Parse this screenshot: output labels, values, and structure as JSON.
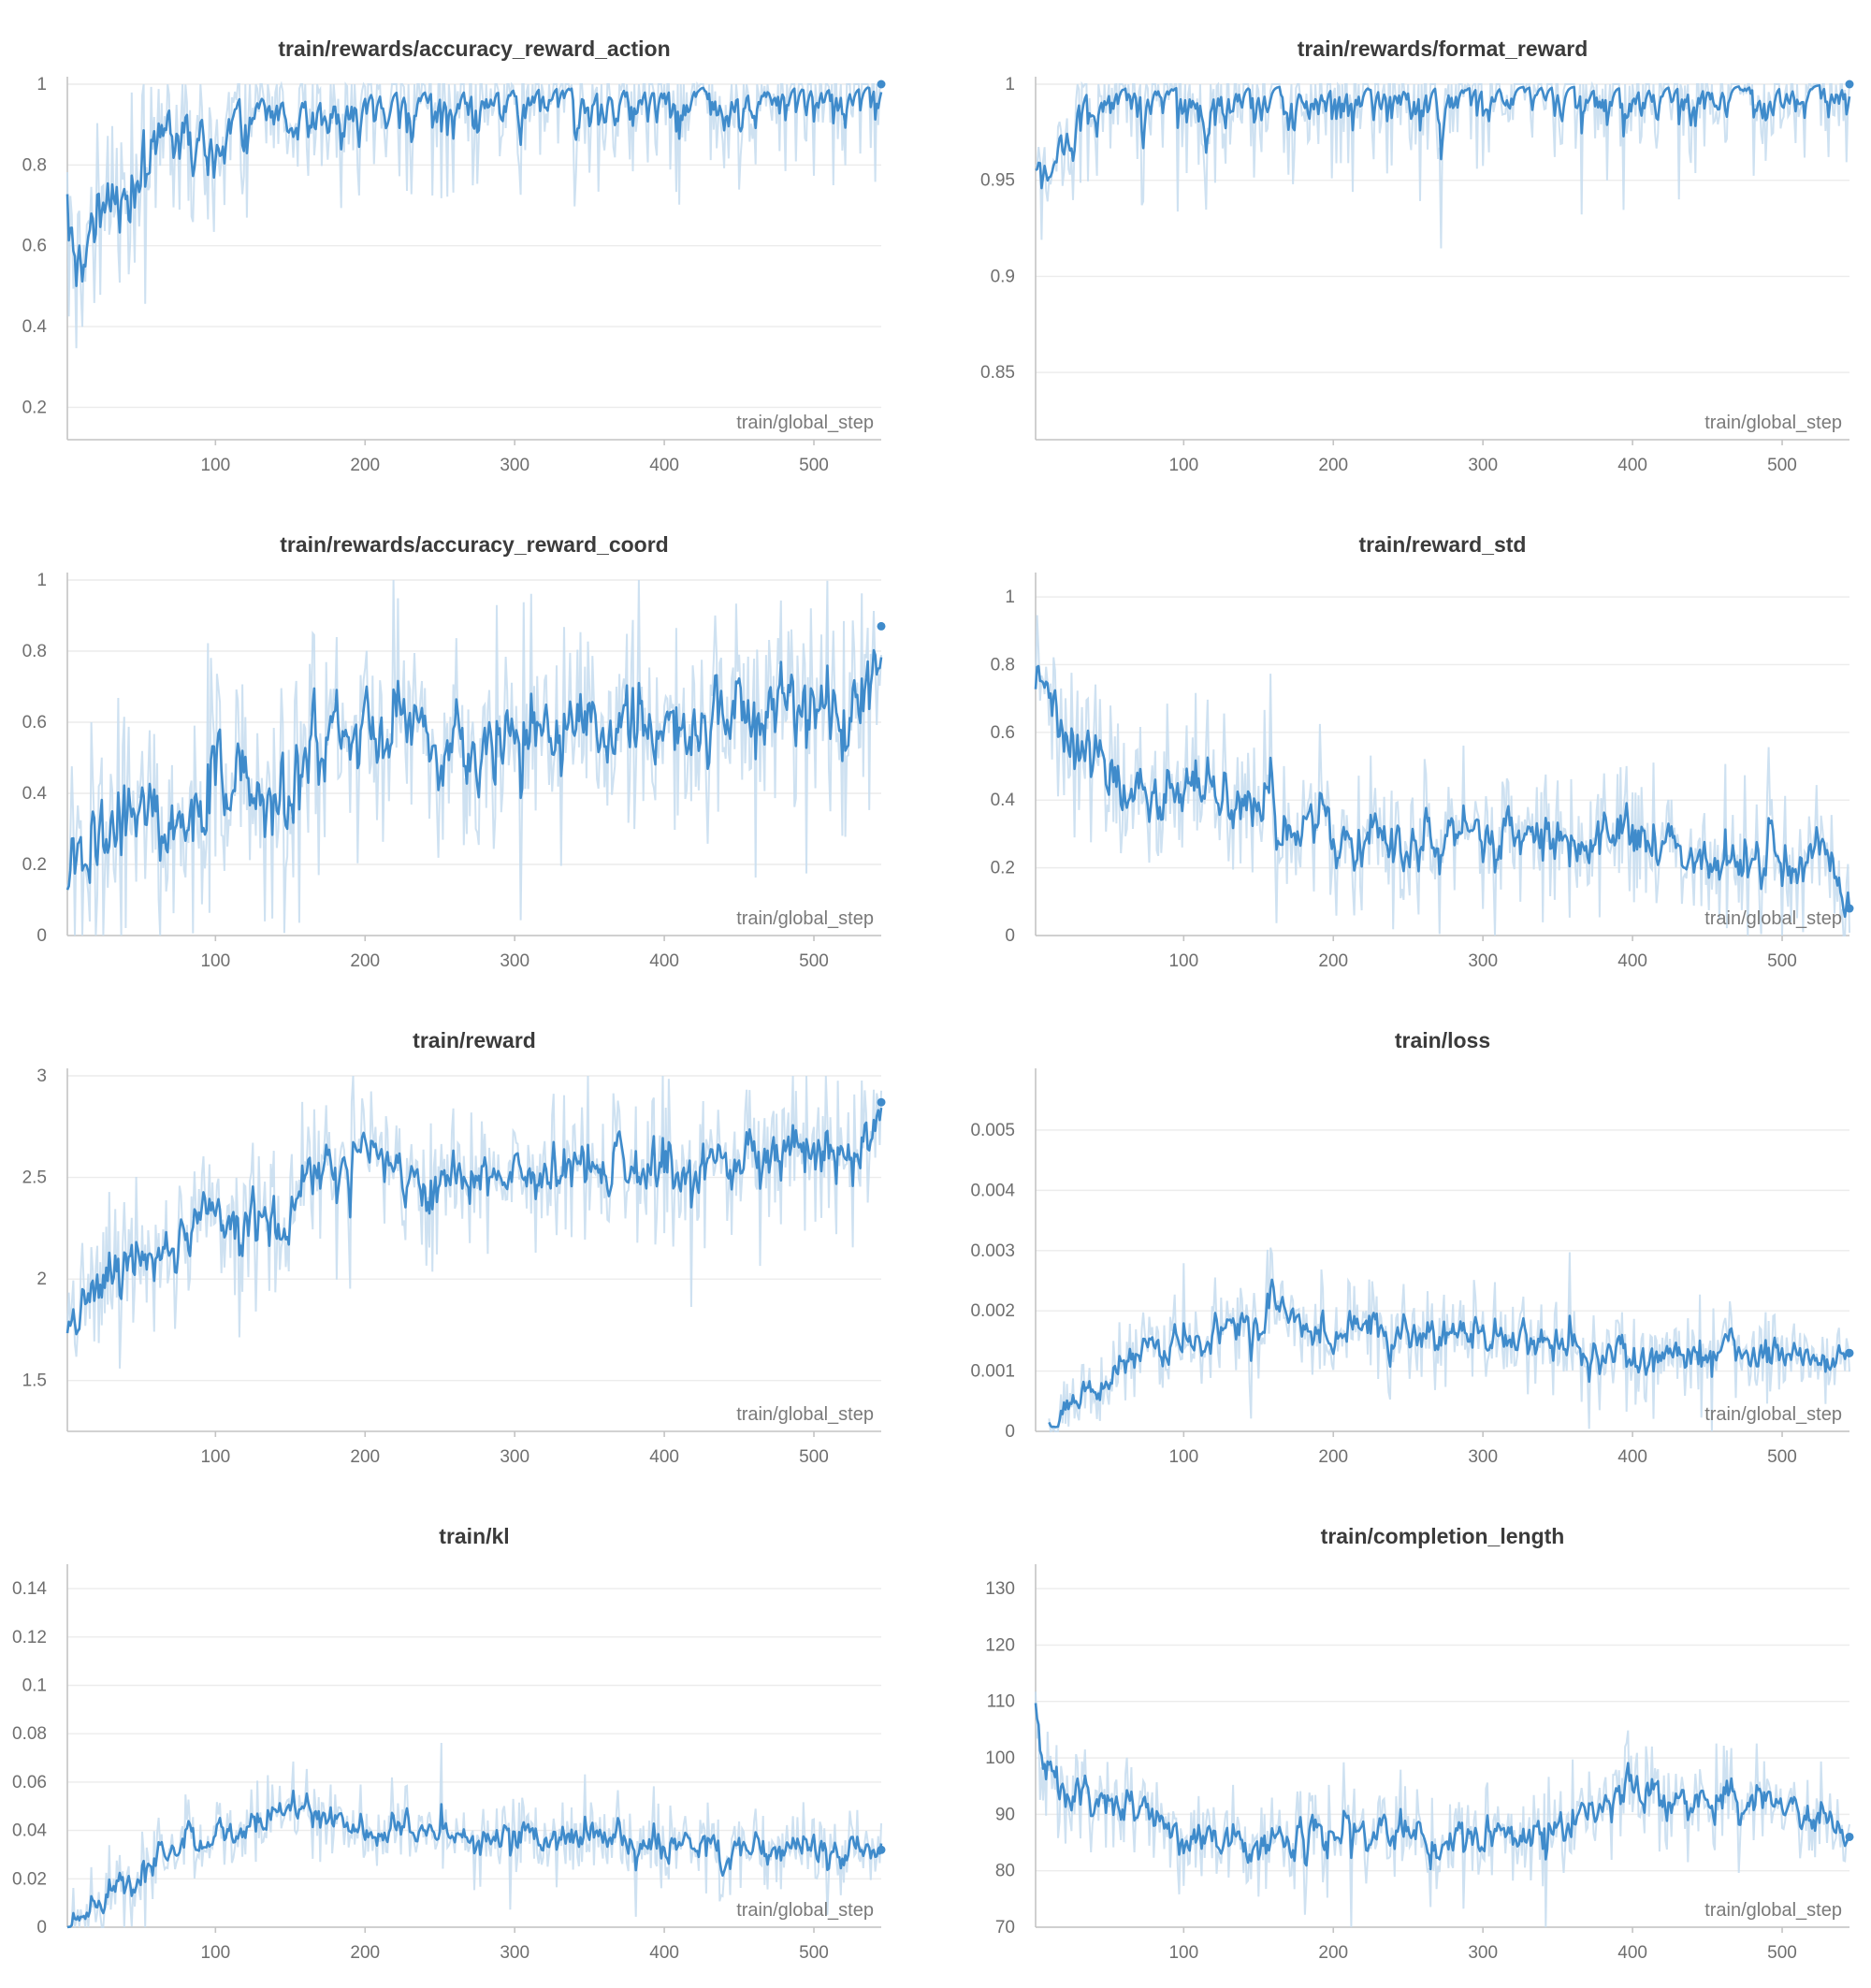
{
  "colors": {
    "line": "#3f8bcb",
    "raw_band": "#c6dcee",
    "grid": "#ececec",
    "axis": "#c4c4c4",
    "text": "#3b3b3b"
  },
  "chart_data": [
    {
      "type": "line",
      "title": "train/rewards/accuracy_reward_action",
      "xlabel": "train/global_step",
      "xlim": [
        1,
        545
      ],
      "ylim": [
        0.12,
        1.0
      ],
      "x_ticks": [
        100,
        200,
        300,
        400,
        500
      ],
      "y_ticks": [
        0.2,
        0.4,
        0.6,
        0.8,
        1
      ],
      "y_tick_labels": [
        "0.2",
        "0.4",
        "0.6",
        "0.8",
        "1"
      ],
      "grid": true,
      "series": [
        {
          "x": [
            1,
            10,
            20,
            30,
            40,
            50,
            60,
            80,
            100,
            120,
            150,
            200,
            250,
            300,
            350,
            400,
            450,
            500,
            530,
            545
          ],
          "y": [
            0.6,
            0.55,
            0.72,
            0.68,
            0.7,
            0.82,
            0.9,
            0.88,
            0.85,
            0.92,
            0.9,
            0.94,
            0.95,
            0.97,
            0.98,
            0.97,
            0.98,
            0.98,
            0.97,
            1.0
          ]
        }
      ]
    },
    {
      "type": "line",
      "title": "train/rewards/format_reward",
      "xlabel": "train/global_step",
      "xlim": [
        1,
        545
      ],
      "ylim": [
        0.815,
        1.0
      ],
      "x_ticks": [
        100,
        200,
        300,
        400,
        500
      ],
      "y_ticks": [
        0.85,
        0.9,
        0.95,
        1
      ],
      "y_tick_labels": [
        "0.85",
        "0.9",
        "0.95",
        "1"
      ],
      "grid": true,
      "series": [
        {
          "x": [
            1,
            10,
            20,
            30,
            40,
            60,
            100,
            150,
            200,
            250,
            300,
            350,
            400,
            450,
            500,
            545
          ],
          "y": [
            0.95,
            0.96,
            0.975,
            0.985,
            0.99,
            0.995,
            0.995,
            0.996,
            0.995,
            0.996,
            0.995,
            0.996,
            0.994,
            0.997,
            0.996,
            1.0
          ]
        }
      ]
    },
    {
      "type": "line",
      "title": "train/rewards/accuracy_reward_coord",
      "xlabel": "train/global_step",
      "xlim": [
        1,
        545
      ],
      "ylim": [
        0,
        1.0
      ],
      "x_ticks": [
        100,
        200,
        300,
        400,
        500
      ],
      "y_ticks": [
        0,
        0.2,
        0.4,
        0.6,
        0.8,
        1
      ],
      "y_tick_labels": [
        "0",
        "0.2",
        "0.4",
        "0.6",
        "0.8",
        "1"
      ],
      "grid": true,
      "series": [
        {
          "x": [
            1,
            20,
            40,
            60,
            80,
            100,
            120,
            140,
            160,
            180,
            200,
            250,
            300,
            350,
            400,
            450,
            500,
            530,
            545
          ],
          "y": [
            0.12,
            0.3,
            0.32,
            0.35,
            0.38,
            0.45,
            0.42,
            0.4,
            0.5,
            0.58,
            0.6,
            0.55,
            0.57,
            0.58,
            0.6,
            0.62,
            0.64,
            0.62,
            0.87
          ]
        }
      ]
    },
    {
      "type": "line",
      "title": "train/reward_std",
      "xlabel": "train/global_step",
      "xlim": [
        1,
        545
      ],
      "ylim": [
        0,
        1.05
      ],
      "x_ticks": [
        100,
        200,
        300,
        400,
        500
      ],
      "y_ticks": [
        0,
        0.2,
        0.4,
        0.6,
        0.8,
        1
      ],
      "y_tick_labels": [
        "0",
        "0.2",
        "0.4",
        "0.6",
        "0.8",
        "1"
      ],
      "grid": true,
      "series": [
        {
          "x": [
            1,
            10,
            20,
            40,
            60,
            80,
            100,
            150,
            200,
            250,
            300,
            350,
            400,
            450,
            500,
            530,
            545
          ],
          "y": [
            0.7,
            0.72,
            0.6,
            0.5,
            0.45,
            0.42,
            0.42,
            0.38,
            0.3,
            0.28,
            0.3,
            0.27,
            0.3,
            0.22,
            0.22,
            0.25,
            0.08
          ]
        }
      ]
    },
    {
      "type": "line",
      "title": "train/reward",
      "xlabel": "train/global_step",
      "xlim": [
        1,
        545
      ],
      "ylim": [
        1.25,
        3.0
      ],
      "x_ticks": [
        100,
        200,
        300,
        400,
        500
      ],
      "y_ticks": [
        1.5,
        2,
        2.5,
        3
      ],
      "y_tick_labels": [
        "1.5",
        "2",
        "2.5",
        "3"
      ],
      "grid": true,
      "series": [
        {
          "x": [
            1,
            20,
            40,
            60,
            80,
            100,
            120,
            140,
            160,
            180,
            200,
            250,
            300,
            350,
            400,
            450,
            500,
            530,
            545
          ],
          "y": [
            1.65,
            1.95,
            2.05,
            2.15,
            2.25,
            2.3,
            2.32,
            2.2,
            2.45,
            2.55,
            2.55,
            2.48,
            2.52,
            2.55,
            2.55,
            2.58,
            2.62,
            2.6,
            2.87
          ]
        }
      ]
    },
    {
      "type": "line",
      "title": "train/loss",
      "xlabel": "train/global_step",
      "xlim": [
        1,
        545
      ],
      "ylim": [
        0,
        0.0059
      ],
      "x_ticks": [
        100,
        200,
        300,
        400,
        500
      ],
      "y_ticks": [
        0,
        0.001,
        0.002,
        0.003,
        0.004,
        0.005
      ],
      "y_tick_labels": [
        "0",
        "0.001",
        "0.002",
        "0.003",
        "0.004",
        "0.005"
      ],
      "grid": true,
      "series": [
        {
          "x": [
            10,
            20,
            40,
            60,
            80,
            100,
            120,
            140,
            160,
            180,
            200,
            250,
            300,
            350,
            400,
            450,
            500,
            530,
            545
          ],
          "y": [
            0.0,
            0.0004,
            0.0008,
            0.0012,
            0.0013,
            0.0014,
            0.0016,
            0.0018,
            0.0021,
            0.0018,
            0.0016,
            0.0017,
            0.0016,
            0.0015,
            0.0013,
            0.0013,
            0.0013,
            0.0012,
            0.0013
          ]
        }
      ]
    },
    {
      "type": "line",
      "title": "train/kl",
      "xlabel": "train/global_step",
      "xlim": [
        1,
        545
      ],
      "ylim": [
        0,
        0.147
      ],
      "x_ticks": [
        100,
        200,
        300,
        400,
        500
      ],
      "y_ticks": [
        0,
        0.02,
        0.04,
        0.06,
        0.08,
        0.1,
        0.12,
        0.14
      ],
      "y_tick_labels": [
        "0",
        "0.02",
        "0.04",
        "0.06",
        "0.08",
        "0.1",
        "0.12",
        "0.14"
      ],
      "grid": true,
      "series": [
        {
          "x": [
            1,
            10,
            20,
            40,
            60,
            80,
            100,
            120,
            140,
            160,
            200,
            250,
            300,
            350,
            400,
            450,
            500,
            530,
            545
          ],
          "y": [
            0.0,
            0.003,
            0.012,
            0.02,
            0.03,
            0.035,
            0.038,
            0.042,
            0.048,
            0.05,
            0.04,
            0.038,
            0.037,
            0.04,
            0.033,
            0.032,
            0.033,
            0.031,
            0.032
          ]
        }
      ]
    },
    {
      "type": "line",
      "title": "train/completion_length",
      "xlabel": "train/global_step",
      "xlim": [
        1,
        545
      ],
      "ylim": [
        70,
        133
      ],
      "x_ticks": [
        100,
        200,
        300,
        400,
        500
      ],
      "y_ticks": [
        70,
        80,
        90,
        100,
        110,
        120,
        130
      ],
      "y_tick_labels": [
        "70",
        "80",
        "90",
        "100",
        "110",
        "120",
        "130"
      ],
      "grid": true,
      "series": [
        {
          "x": [
            1,
            10,
            20,
            40,
            60,
            80,
            100,
            120,
            140,
            160,
            200,
            250,
            300,
            350,
            400,
            450,
            500,
            530,
            545
          ],
          "y": [
            105,
            100,
            95,
            93,
            91,
            89,
            87,
            85,
            84,
            85,
            87,
            86,
            86,
            88,
            93,
            93,
            92,
            90,
            86
          ]
        }
      ]
    }
  ]
}
